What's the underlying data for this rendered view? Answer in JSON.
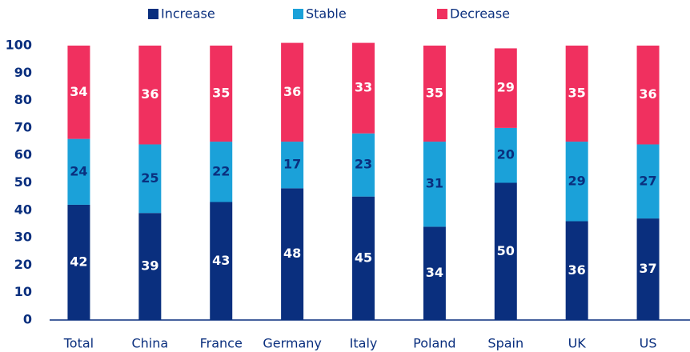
{
  "chart_data": {
    "type": "stacked_bar",
    "categories": [
      "Total",
      "China",
      "France",
      "Germany",
      "Italy",
      "Poland",
      "Spain",
      "UK",
      "US"
    ],
    "series": [
      {
        "name": "Increase",
        "color": "#0a2f7e",
        "values": [
          42,
          39,
          43,
          48,
          45,
          34,
          50,
          36,
          37
        ]
      },
      {
        "name": "Stable",
        "color": "#1ba1d9",
        "values": [
          24,
          25,
          22,
          17,
          23,
          31,
          20,
          29,
          27
        ]
      },
      {
        "name": "Decrease",
        "color": "#f0305f",
        "values": [
          34,
          36,
          35,
          36,
          33,
          35,
          29,
          35,
          36
        ]
      }
    ],
    "ylim": [
      0,
      100
    ],
    "yticks": [
      0,
      10,
      20,
      30,
      40,
      50,
      60,
      70,
      80,
      90,
      100
    ],
    "legend": "top"
  }
}
